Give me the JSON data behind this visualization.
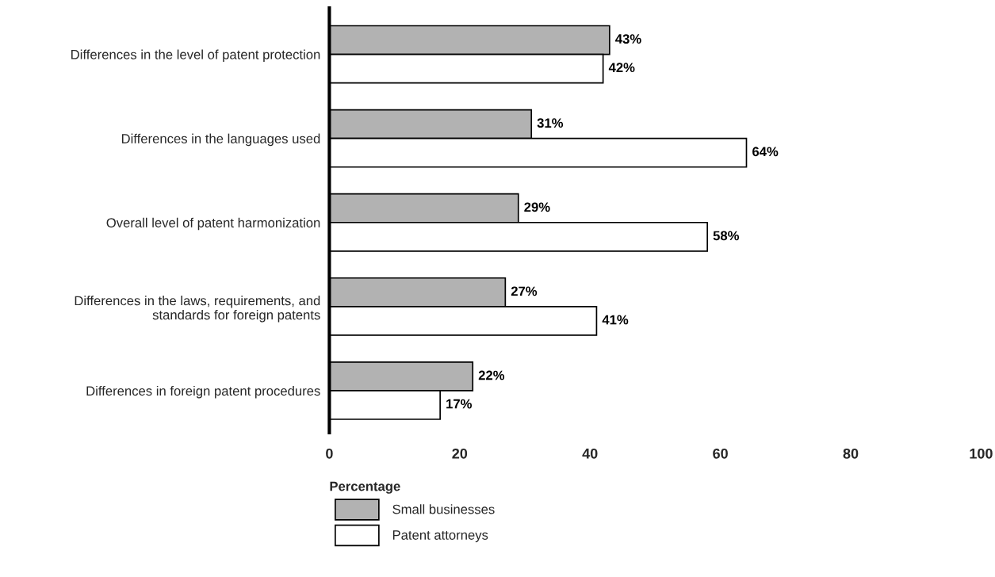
{
  "chart_data": {
    "type": "bar",
    "orientation": "horizontal",
    "xlabel": "Percentage",
    "categories": [
      "Differences in the level of patent protection",
      "Differences in the languages used",
      "Overall level of patent harmonization",
      "Differences in the laws, requirements, and\nstandards for foreign patents",
      "Differences in foreign patent procedures"
    ],
    "series": [
      {
        "name": "Small businesses",
        "color": "#b2b2b2",
        "values": [
          43,
          31,
          29,
          27,
          22
        ],
        "value_labels": [
          "43%",
          "31%",
          "29%",
          "27%",
          "22%"
        ]
      },
      {
        "name": "Patent attorneys",
        "color": "#ffffff",
        "values": [
          42,
          64,
          58,
          41,
          17
        ],
        "value_labels": [
          "42%",
          "64%",
          "58%",
          "41%",
          "17%"
        ]
      }
    ],
    "xlim": [
      0,
      100
    ],
    "xticks": [
      0,
      20,
      40,
      60,
      80,
      100
    ],
    "grid": false,
    "legend": "bottom"
  }
}
